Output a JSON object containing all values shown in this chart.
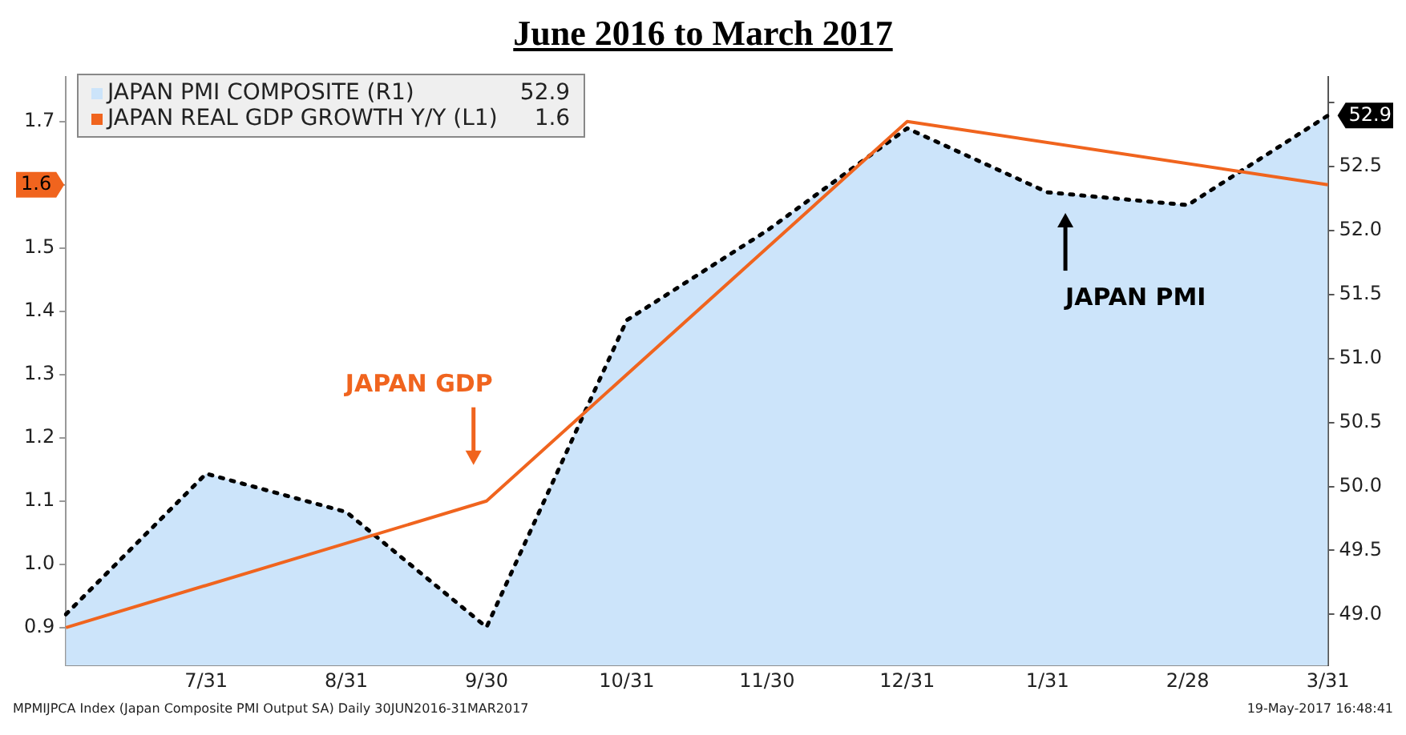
{
  "chart_data": {
    "type": "line",
    "title": "June 2016 to March 2017",
    "categories": [
      null,
      "7/31",
      "8/31",
      "9/30",
      "10/31",
      "11/30",
      "12/31",
      "1/31",
      "2/28",
      "3/31"
    ],
    "series": [
      {
        "name": "JAPAN PMI COMPOSITE (R1)",
        "type": "area",
        "axis": "y2",
        "color": "#cce4fa",
        "line_style": "dotted",
        "values": [
          49.0,
          50.1,
          49.8,
          48.9,
          51.3,
          52.0,
          52.8,
          52.3,
          52.2,
          52.9
        ]
      },
      {
        "name": "JAPAN REAL GDP GROWTH Y/Y (L1)",
        "color": "#f0641e",
        "line_style": "solid",
        "values": [
          0.9,
          null,
          null,
          1.1,
          null,
          null,
          1.7,
          null,
          null,
          1.6
        ]
      }
    ],
    "ylim": [
      0.84,
      1.77
    ],
    "yticks": [
      {
        "value": 0.9,
        "label": "0.9"
      },
      {
        "value": 1.0,
        "label": "1.0"
      },
      1.1,
      1.2,
      1.3,
      1.4,
      1.5,
      1.6,
      1.7
    ],
    "y2lim": [
      48.6,
      53.2
    ],
    "y2ticks": [
      {
        "value": 49.0,
        "label": "49.0"
      },
      49.5,
      {
        "value": 50.0,
        "label": "50.0"
      },
      50.5,
      {
        "value": 51.0,
        "label": "51.0"
      },
      51.5,
      {
        "value": 52.0,
        "label": "52.0"
      },
      52.5,
      {
        "value": 53.0,
        "label": null
      }
    ],
    "grid": false,
    "legend": "top left",
    "marker": "none",
    "annotations": [
      "JAPAN GDP",
      "JAPAN PMI",
      "52.9",
      "1.6",
      "MPMIJPCA Index (Japan Composite PMI Output SA)  Daily 30JUN2016-31MAR2017",
      "19-May-2017 16:48:41"
    ]
  }
}
